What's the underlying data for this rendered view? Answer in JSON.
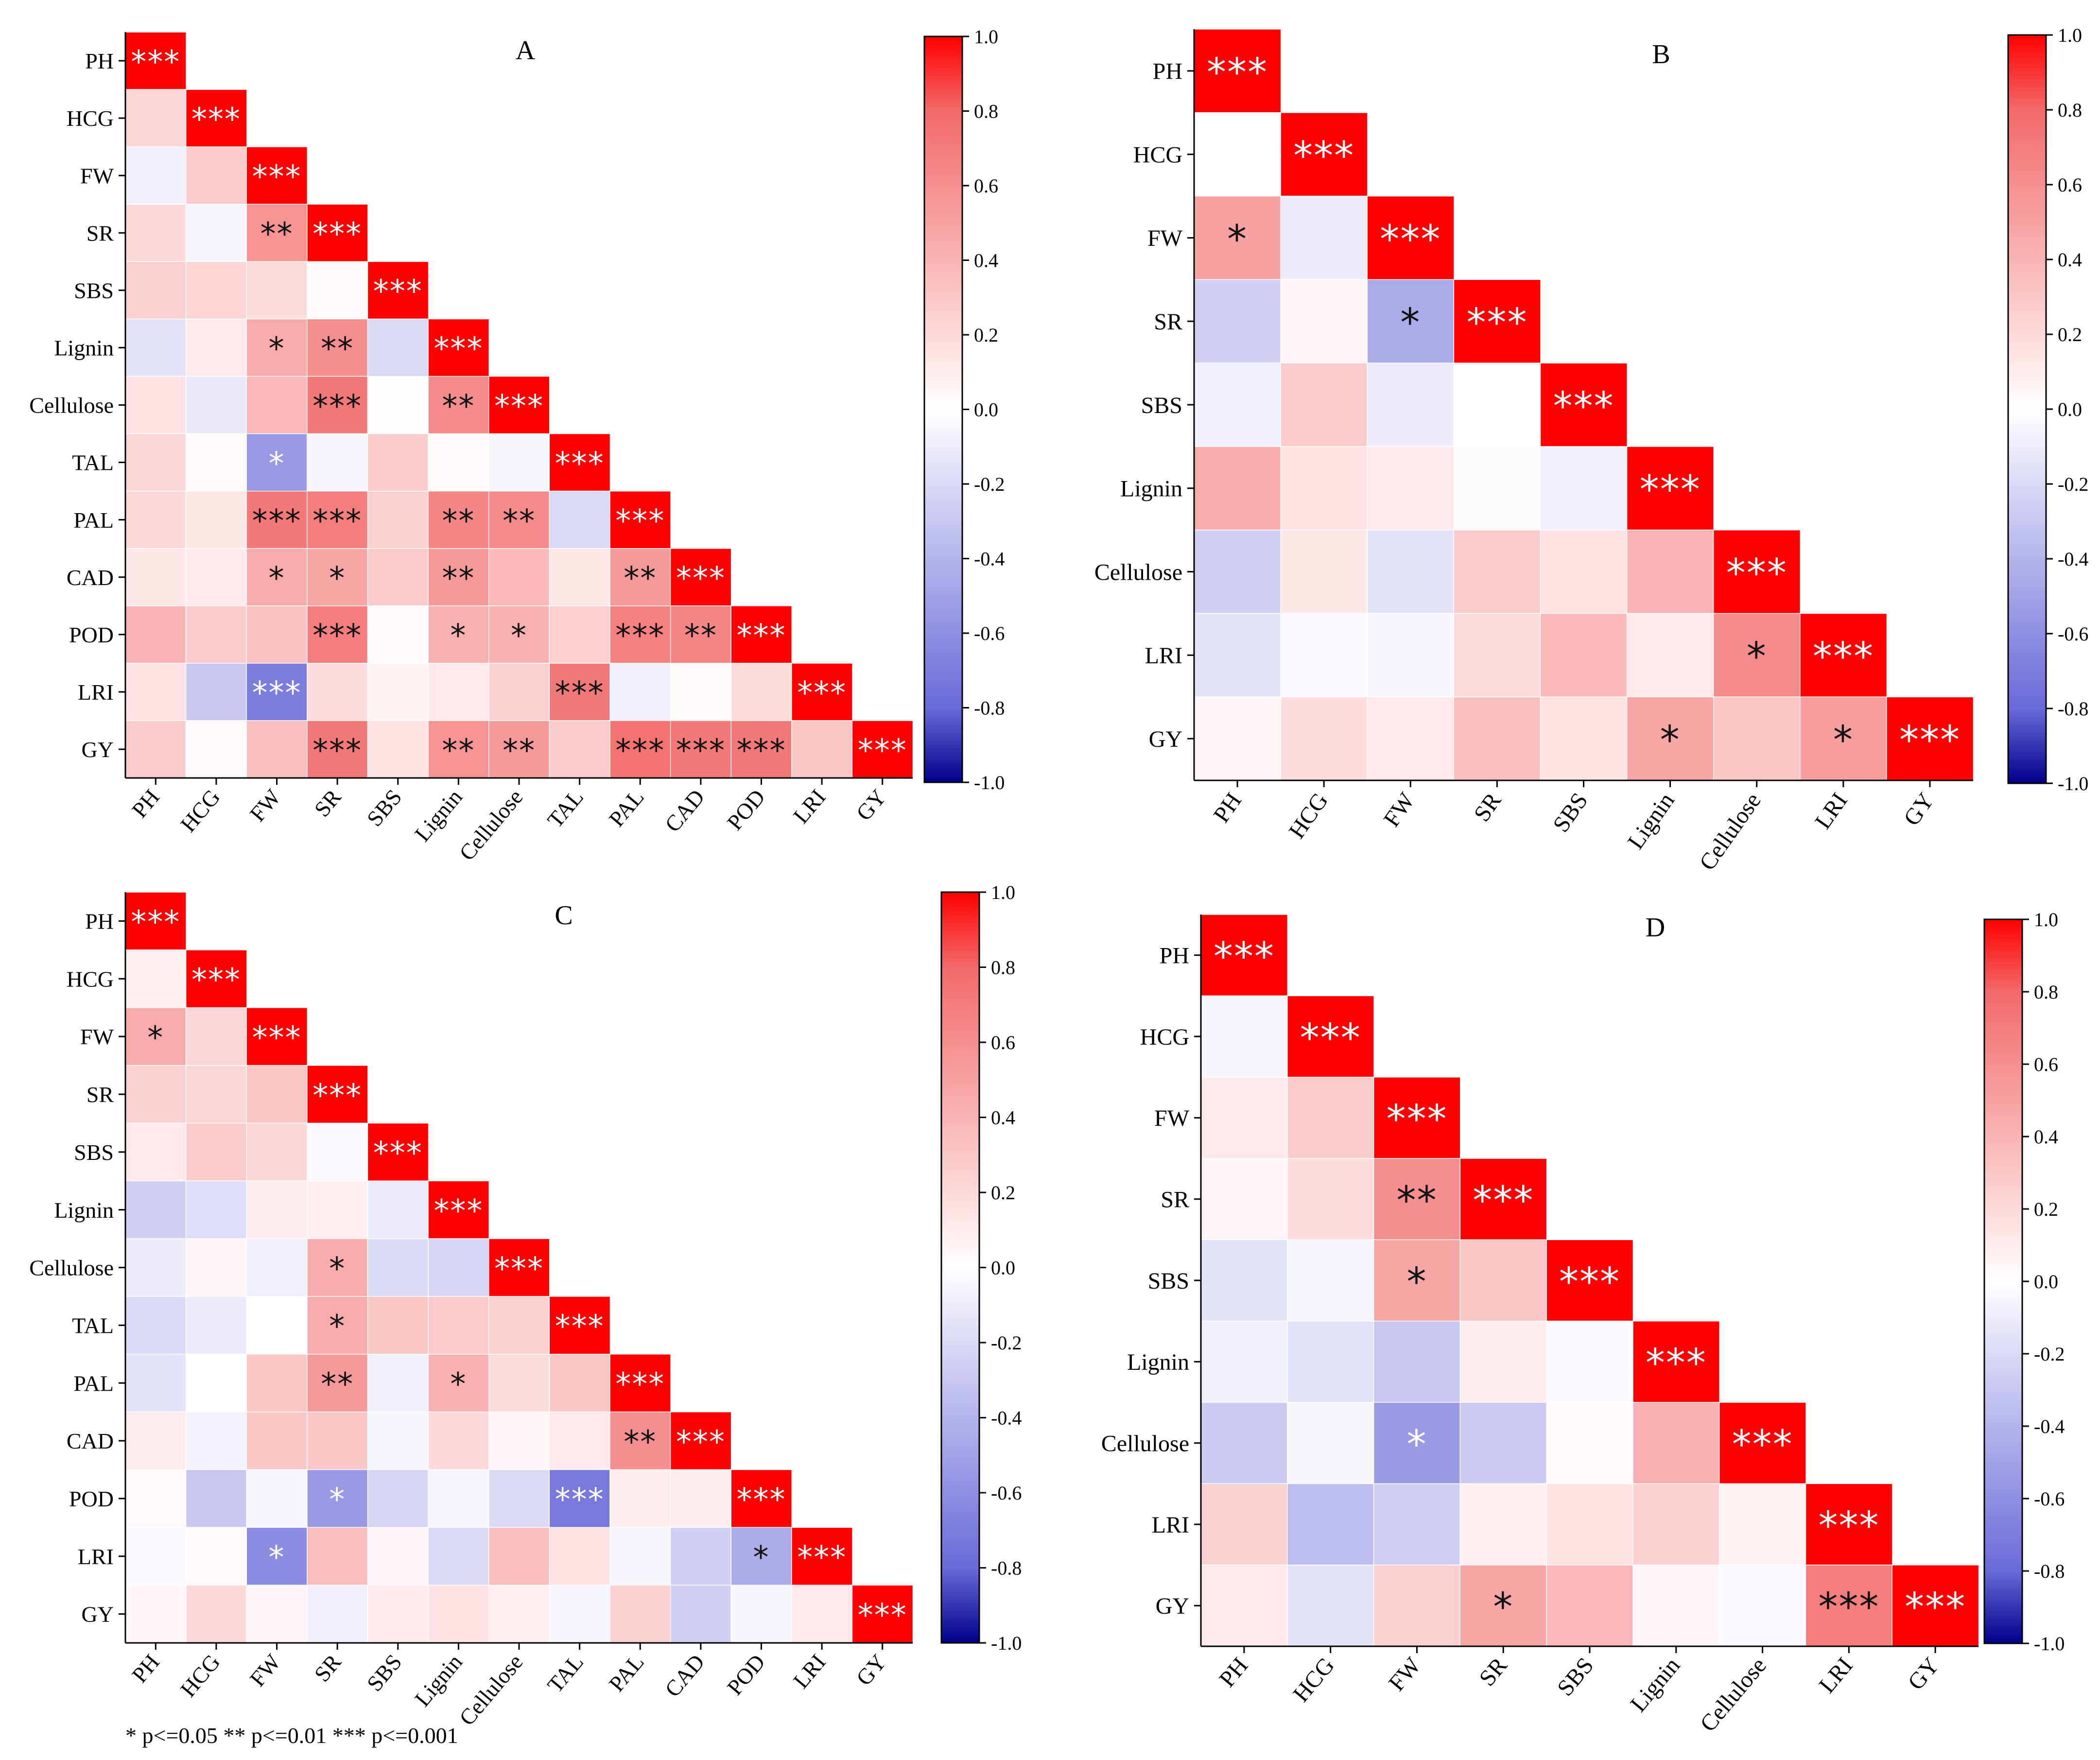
{
  "significance_note": "* p<=0.05  ** p<=0.01  *** p<=0.001",
  "colorbar": {
    "ticks": [
      "1.0",
      "0.8",
      "0.6",
      "0.4",
      "0.2",
      "0.0",
      "-0.2",
      "-0.4",
      "-0.6",
      "-0.8",
      "-1.0"
    ],
    "range": [
      -1.0,
      1.0
    ],
    "colors": {
      "negative": "#00008b",
      "mid_negative": "#6a6ad8",
      "zero": "#ffffff",
      "mid_positive": "#f26a6a",
      "positive": "#ff0000"
    }
  },
  "chart_data": [
    {
      "type": "heatmap",
      "title": "A",
      "variables": [
        "PH",
        "HCG",
        "FW",
        "SR",
        "SBS",
        "Lignin",
        "Cellulose",
        "TAL",
        "PAL",
        "CAD",
        "POD",
        "LRI",
        "GY"
      ],
      "values": [
        [
          1.0
        ],
        [
          0.22,
          1.0
        ],
        [
          -0.08,
          0.28,
          1.0
        ],
        [
          0.2,
          -0.05,
          0.58,
          1.0
        ],
        [
          0.25,
          0.23,
          0.18,
          0.02,
          1.0
        ],
        [
          -0.15,
          0.12,
          0.45,
          0.6,
          -0.2,
          1.0
        ],
        [
          0.15,
          -0.12,
          0.38,
          0.72,
          0.01,
          0.62,
          1.0
        ],
        [
          0.22,
          0.02,
          -0.55,
          -0.05,
          0.28,
          0.02,
          -0.05,
          1.0
        ],
        [
          0.2,
          0.13,
          0.72,
          0.7,
          0.25,
          0.65,
          0.62,
          -0.2,
          1.0
        ],
        [
          0.13,
          0.12,
          0.45,
          0.48,
          0.28,
          0.55,
          0.38,
          0.13,
          0.55,
          1.0
        ],
        [
          0.4,
          0.28,
          0.32,
          0.7,
          0.02,
          0.42,
          0.42,
          0.26,
          0.68,
          0.65,
          1.0
        ],
        [
          0.15,
          -0.3,
          -0.7,
          0.18,
          0.06,
          0.12,
          0.25,
          0.72,
          -0.08,
          0.02,
          0.18,
          1.0
        ],
        [
          0.28,
          0.02,
          0.35,
          0.72,
          0.15,
          0.58,
          0.55,
          0.28,
          0.75,
          0.72,
          0.72,
          0.3,
          1.0
        ]
      ],
      "significance": [
        [
          "***"
        ],
        [
          "",
          "***"
        ],
        [
          "",
          "",
          "***"
        ],
        [
          "",
          "",
          "**",
          "***"
        ],
        [
          "",
          "",
          "",
          "",
          "***"
        ],
        [
          "",
          "",
          "*",
          "**",
          "",
          "***"
        ],
        [
          "",
          "",
          "",
          "***",
          "",
          "**",
          "***"
        ],
        [
          "",
          "",
          "*",
          "",
          "",
          "",
          "",
          "***"
        ],
        [
          "",
          "",
          "***",
          "***",
          "",
          "**",
          "**",
          "",
          "***"
        ],
        [
          "",
          "",
          "*",
          "*",
          "",
          "**",
          "",
          "",
          "**",
          "***"
        ],
        [
          "",
          "",
          "",
          "***",
          "",
          "*",
          "*",
          "",
          "***",
          "**",
          "***"
        ],
        [
          "",
          "",
          "***",
          "",
          "",
          "",
          "",
          "***",
          "",
          "",
          "",
          "***"
        ],
        [
          "",
          "",
          "",
          "***",
          "",
          "**",
          "**",
          "",
          "***",
          "***",
          "***",
          "",
          "***"
        ]
      ]
    },
    {
      "type": "heatmap",
      "title": "B",
      "variables": [
        "PH",
        "HCG",
        "FW",
        "SR",
        "SBS",
        "Lignin",
        "Cellulose",
        "LRI",
        "GY"
      ],
      "values": [
        [
          1.0
        ],
        [
          0.0,
          1.0
        ],
        [
          0.5,
          -0.1,
          1.0
        ],
        [
          -0.25,
          0.05,
          -0.45,
          1.0
        ],
        [
          -0.08,
          0.28,
          -0.1,
          0.0,
          1.0
        ],
        [
          0.45,
          0.15,
          0.12,
          -0.02,
          -0.08,
          1.0
        ],
        [
          -0.25,
          0.13,
          -0.15,
          0.28,
          0.15,
          0.4,
          1.0
        ],
        [
          -0.15,
          -0.03,
          -0.05,
          0.18,
          0.38,
          0.12,
          0.62,
          1.0
        ],
        [
          0.05,
          0.18,
          0.12,
          0.35,
          0.15,
          0.48,
          0.3,
          0.52,
          1.0
        ]
      ],
      "significance": [
        [
          "***"
        ],
        [
          "",
          "***"
        ],
        [
          "*",
          "",
          "***"
        ],
        [
          "",
          "",
          "*",
          "***"
        ],
        [
          "",
          "",
          "",
          "",
          "***"
        ],
        [
          "",
          "",
          "",
          "",
          "",
          "***"
        ],
        [
          "",
          "",
          "",
          "",
          "",
          "",
          "***"
        ],
        [
          "",
          "",
          "",
          "",
          "",
          "",
          "*",
          "***"
        ],
        [
          "",
          "",
          "",
          "",
          "",
          "*",
          "",
          "*",
          "***"
        ]
      ]
    },
    {
      "type": "heatmap",
      "title": "C",
      "variables": [
        "PH",
        "HCG",
        "FW",
        "SR",
        "SBS",
        "Lignin",
        "Cellulose",
        "TAL",
        "PAL",
        "CAD",
        "POD",
        "LRI",
        "GY"
      ],
      "values": [
        [
          1.0
        ],
        [
          0.08,
          1.0
        ],
        [
          0.45,
          0.22,
          1.0
        ],
        [
          0.25,
          0.22,
          0.3,
          1.0
        ],
        [
          0.12,
          0.28,
          0.22,
          -0.03,
          1.0
        ],
        [
          -0.25,
          -0.18,
          0.1,
          0.08,
          -0.1,
          1.0
        ],
        [
          -0.1,
          0.05,
          -0.08,
          0.45,
          -0.2,
          -0.22,
          1.0
        ],
        [
          -0.2,
          -0.1,
          0.0,
          0.45,
          0.3,
          0.28,
          0.25,
          1.0
        ],
        [
          -0.15,
          0.0,
          0.3,
          0.55,
          -0.08,
          0.42,
          0.18,
          0.3,
          1.0
        ],
        [
          0.1,
          -0.07,
          0.3,
          0.3,
          -0.05,
          0.2,
          0.05,
          0.12,
          0.6,
          1.0
        ],
        [
          0.03,
          -0.3,
          -0.05,
          -0.55,
          -0.22,
          -0.05,
          -0.2,
          -0.72,
          0.1,
          0.1,
          1.0
        ],
        [
          -0.03,
          0.02,
          -0.62,
          0.35,
          0.05,
          -0.2,
          0.35,
          0.15,
          -0.05,
          -0.25,
          -0.45,
          1.0
        ],
        [
          0.05,
          0.2,
          0.05,
          -0.08,
          0.12,
          0.15,
          0.08,
          -0.05,
          0.25,
          -0.25,
          -0.05,
          0.12,
          1.0
        ]
      ],
      "significance": [
        [
          "***"
        ],
        [
          "",
          "***"
        ],
        [
          "*",
          "",
          "***"
        ],
        [
          "",
          "",
          "",
          "***"
        ],
        [
          "",
          "",
          "",
          "",
          "***"
        ],
        [
          "",
          "",
          "",
          "",
          "",
          "***"
        ],
        [
          "",
          "",
          "",
          "*",
          "",
          "",
          "***"
        ],
        [
          "",
          "",
          "",
          "*",
          "",
          "",
          "",
          "***"
        ],
        [
          "",
          "",
          "",
          "**",
          "",
          "*",
          "",
          "",
          "***"
        ],
        [
          "",
          "",
          "",
          "",
          "",
          "",
          "",
          "",
          "**",
          "***"
        ],
        [
          "",
          "",
          "",
          "*",
          "",
          "",
          "",
          "***",
          "",
          "",
          "***"
        ],
        [
          "",
          "",
          "*",
          "",
          "",
          "",
          "",
          "",
          "",
          "",
          "*",
          "***"
        ],
        [
          "",
          "",
          "",
          "",
          "",
          "",
          "",
          "",
          "",
          "",
          "",
          "",
          "***"
        ]
      ]
    },
    {
      "type": "heatmap",
      "title": "D",
      "variables": [
        "PH",
        "HCG",
        "FW",
        "SR",
        "SBS",
        "Lignin",
        "Cellulose",
        "LRI",
        "GY"
      ],
      "values": [
        [
          1.0
        ],
        [
          -0.05,
          1.0
        ],
        [
          0.12,
          0.28,
          1.0
        ],
        [
          0.05,
          0.18,
          0.6,
          1.0
        ],
        [
          -0.15,
          -0.05,
          0.48,
          0.3,
          1.0
        ],
        [
          -0.08,
          -0.15,
          -0.3,
          0.1,
          -0.03,
          1.0
        ],
        [
          -0.28,
          -0.05,
          -0.55,
          -0.28,
          0.03,
          0.42,
          1.0
        ],
        [
          0.25,
          -0.35,
          -0.25,
          0.08,
          0.15,
          0.25,
          0.06,
          1.0
        ],
        [
          0.12,
          -0.15,
          0.25,
          0.48,
          0.38,
          0.05,
          -0.03,
          0.7,
          1.0
        ]
      ],
      "significance": [
        [
          "***"
        ],
        [
          "",
          "***"
        ],
        [
          "",
          "",
          "***"
        ],
        [
          "",
          "",
          "**",
          "***"
        ],
        [
          "",
          "",
          "*",
          "",
          "***"
        ],
        [
          "",
          "",
          "",
          "",
          "",
          "***"
        ],
        [
          "",
          "",
          "*",
          "",
          "",
          "",
          "***"
        ],
        [
          "",
          "",
          "",
          "",
          "",
          "",
          "",
          "***"
        ],
        [
          "",
          "",
          "",
          "*",
          "",
          "",
          "",
          "***",
          "***"
        ]
      ]
    }
  ]
}
